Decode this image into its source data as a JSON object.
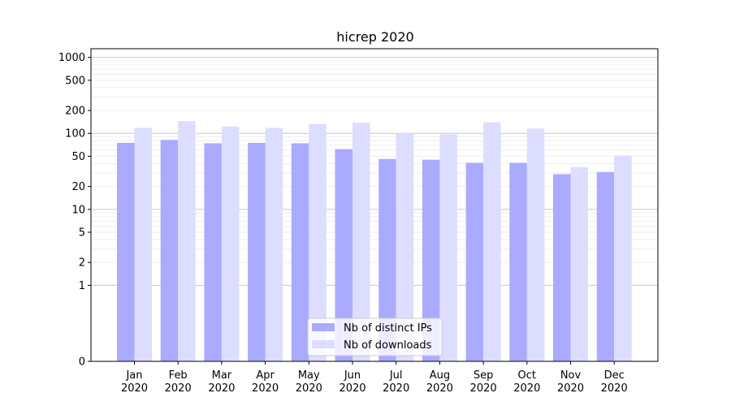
{
  "chart_data": {
    "type": "bar",
    "title": "hicrep 2020",
    "xlabel": "",
    "ylabel": "",
    "y_scale": "symlog",
    "ylim": [
      0,
      1300
    ],
    "y_ticks": [
      0,
      1,
      2,
      5,
      10,
      20,
      50,
      100,
      200,
      500,
      1000
    ],
    "categories": [
      "Jan\n2020",
      "Feb\n2020",
      "Mar\n2020",
      "Apr\n2020",
      "May\n2020",
      "Jun\n2020",
      "Jul\n2020",
      "Aug\n2020",
      "Sep\n2020",
      "Oct\n2020",
      "Nov\n2020",
      "Dec\n2020"
    ],
    "series": [
      {
        "name": "Nb of distinct IPs",
        "color": "#aaaaff",
        "values": [
          75,
          82,
          74,
          75,
          74,
          62,
          46,
          45,
          41,
          41,
          29,
          31
        ]
      },
      {
        "name": "Nb of downloads",
        "color": "#ddddff",
        "values": [
          118,
          145,
          123,
          118,
          133,
          138,
          100,
          97,
          140,
          116,
          36,
          51
        ]
      }
    ],
    "grid": true,
    "legend_placement": "lower-center"
  }
}
